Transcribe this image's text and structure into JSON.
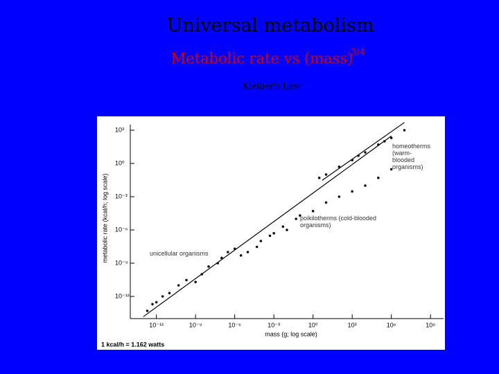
{
  "chart_data": {
    "type": "scatter",
    "title": "Universal metabolism",
    "subtitle": "Metabolic rate vs (mass)",
    "subtitle_exponent": "3/4",
    "caption": "Kleiber's Law",
    "x_label": "mass (g; log scale)",
    "y_label": "metabolic rate (kcal/h; log scale)",
    "footnote": "1 kcal/h = 1.162 watts",
    "x_log": true,
    "y_log": true,
    "xlim": [
      1e-14,
      10000000000.0
    ],
    "ylim": [
      1e-14,
      10000.0
    ],
    "xticks": [
      {
        "value": 1e-12,
        "label": "10⁻¹²"
      },
      {
        "value": 1e-09,
        "label": "10⁻⁹"
      },
      {
        "value": 1e-06,
        "label": "10⁻⁶"
      },
      {
        "value": 0.001,
        "label": "10⁻³"
      },
      {
        "value": 1,
        "label": "10⁰"
      },
      {
        "value": 1000,
        "label": "10³"
      },
      {
        "value": 1000000.0,
        "label": "10⁶"
      },
      {
        "value": 1000000000.0,
        "label": "10⁹"
      }
    ],
    "yticks": [
      {
        "value": 1000,
        "label": "10³"
      },
      {
        "value": 1,
        "label": "10⁰"
      },
      {
        "value": 0.001,
        "label": "10⁻³"
      },
      {
        "value": 1e-06,
        "label": "10⁻⁶"
      },
      {
        "value": 1e-09,
        "label": "10⁻⁹"
      },
      {
        "value": 1e-12,
        "label": "10⁻¹²"
      }
    ],
    "series": [
      {
        "name": "unicellular organisms",
        "color": "#111111",
        "x": [
          2e-13,
          5e-13,
          1e-12,
          3e-12,
          1e-11,
          5e-11,
          2e-10,
          1e-09,
          3e-09,
          1e-08,
          5e-08,
          1e-07,
          3e-07,
          1e-06,
          3e-06
        ],
        "values": [
          5e-14,
          2e-13,
          3e-13,
          1e-12,
          2e-12,
          1e-11,
          3e-11,
          2e-11,
          1e-10,
          5e-10,
          1e-09,
          3e-09,
          1e-08,
          2e-08,
          5e-09
        ]
      },
      {
        "name": "poikilotherms (cold-blooded organisms)",
        "color": "#111111",
        "x": [
          1e-05,
          5e-05,
          0.0001,
          0.0005,
          0.001,
          0.005,
          0.01,
          0.05,
          0.1,
          1,
          10,
          100,
          1000,
          10000.0,
          100000.0,
          1000000.0
        ],
        "values": [
          1e-08,
          3e-08,
          1e-07,
          3e-07,
          5e-07,
          2e-06,
          1e-06,
          1e-05,
          2e-05,
          5e-05,
          0.0003,
          0.001,
          0.003,
          0.01,
          0.05,
          0.3
        ]
      },
      {
        "name": "homeotherms (warm-blooded organisms)",
        "color": "#111111",
        "x": [
          3,
          10,
          100,
          1000,
          3000,
          10000.0,
          100000.0,
          300000.0,
          1000000.0,
          10000000.0
        ],
        "values": [
          0.05,
          0.1,
          0.5,
          2,
          5,
          10,
          50,
          100,
          200,
          1000
        ]
      }
    ],
    "fit_lines": [
      {
        "x": [
          1e-13,
          1000000.0
        ],
        "values": [
          1.5e-14,
          300
        ]
      },
      {
        "x": [
          5,
          10000000.0
        ],
        "values": [
          0.03,
          5000
        ]
      }
    ]
  }
}
